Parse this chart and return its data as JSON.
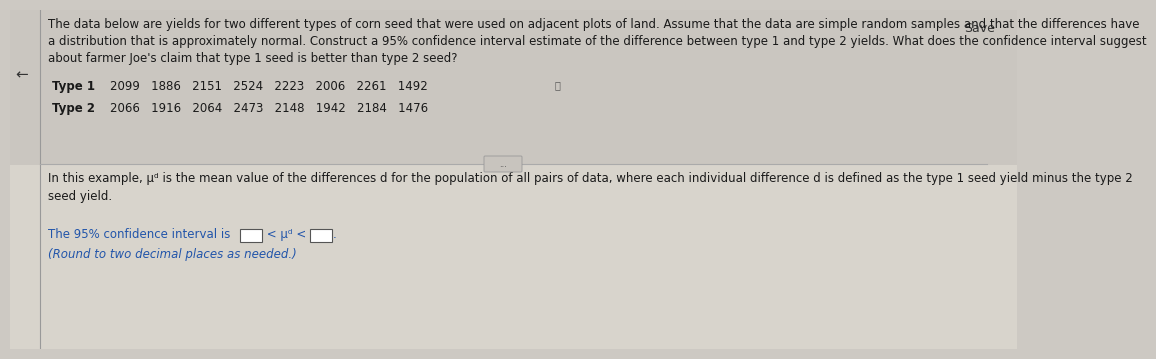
{
  "bg_color": "#cdc9c3",
  "top_bg": "#cdc9c3",
  "bottom_bg": "#d8d4cc",
  "text_color_top": "#1a1a1a",
  "text_color_bottom_main": "#2a2a2a",
  "text_color_blue": "#2255aa",
  "divider_color": "#aaaaaa",
  "para_text": "The data below are yields for two different types of corn seed that were used on adjacent plots of land. Assume that the data are simple random samples and that the differences have\na distribution that is approximately normal. Construct a 95% confidence interval estimate of the difference between type 1 and type 2 yields. What does the confidence interval suggest\nabout farmer Joe's claim that type 1 seed is better than type 2 seed?",
  "type1_label": "Type 1",
  "type2_label": "Type 2",
  "type1_values": "2099   1886   2151   2524   2223   2006   2261   1492",
  "type2_values": "2066   1916   2064   2473   2148   1942   2184   1476",
  "bottom_para": "In this example, μᵈ is the mean value of the differences d for the population of all pairs of data, where each individual difference d is defined as the type 1 seed yield minus the type 2\nseed yield.",
  "ci_prefix": "The 95% confidence interval is ",
  "ci_middle": " < μᵈ < ",
  "ci_suffix": ".",
  "round_note": "(Round to two decimal places as needed.)",
  "left_arrow": "←",
  "save_text": "Save",
  "font_size": 8.5,
  "font_size_bottom": 8.5
}
